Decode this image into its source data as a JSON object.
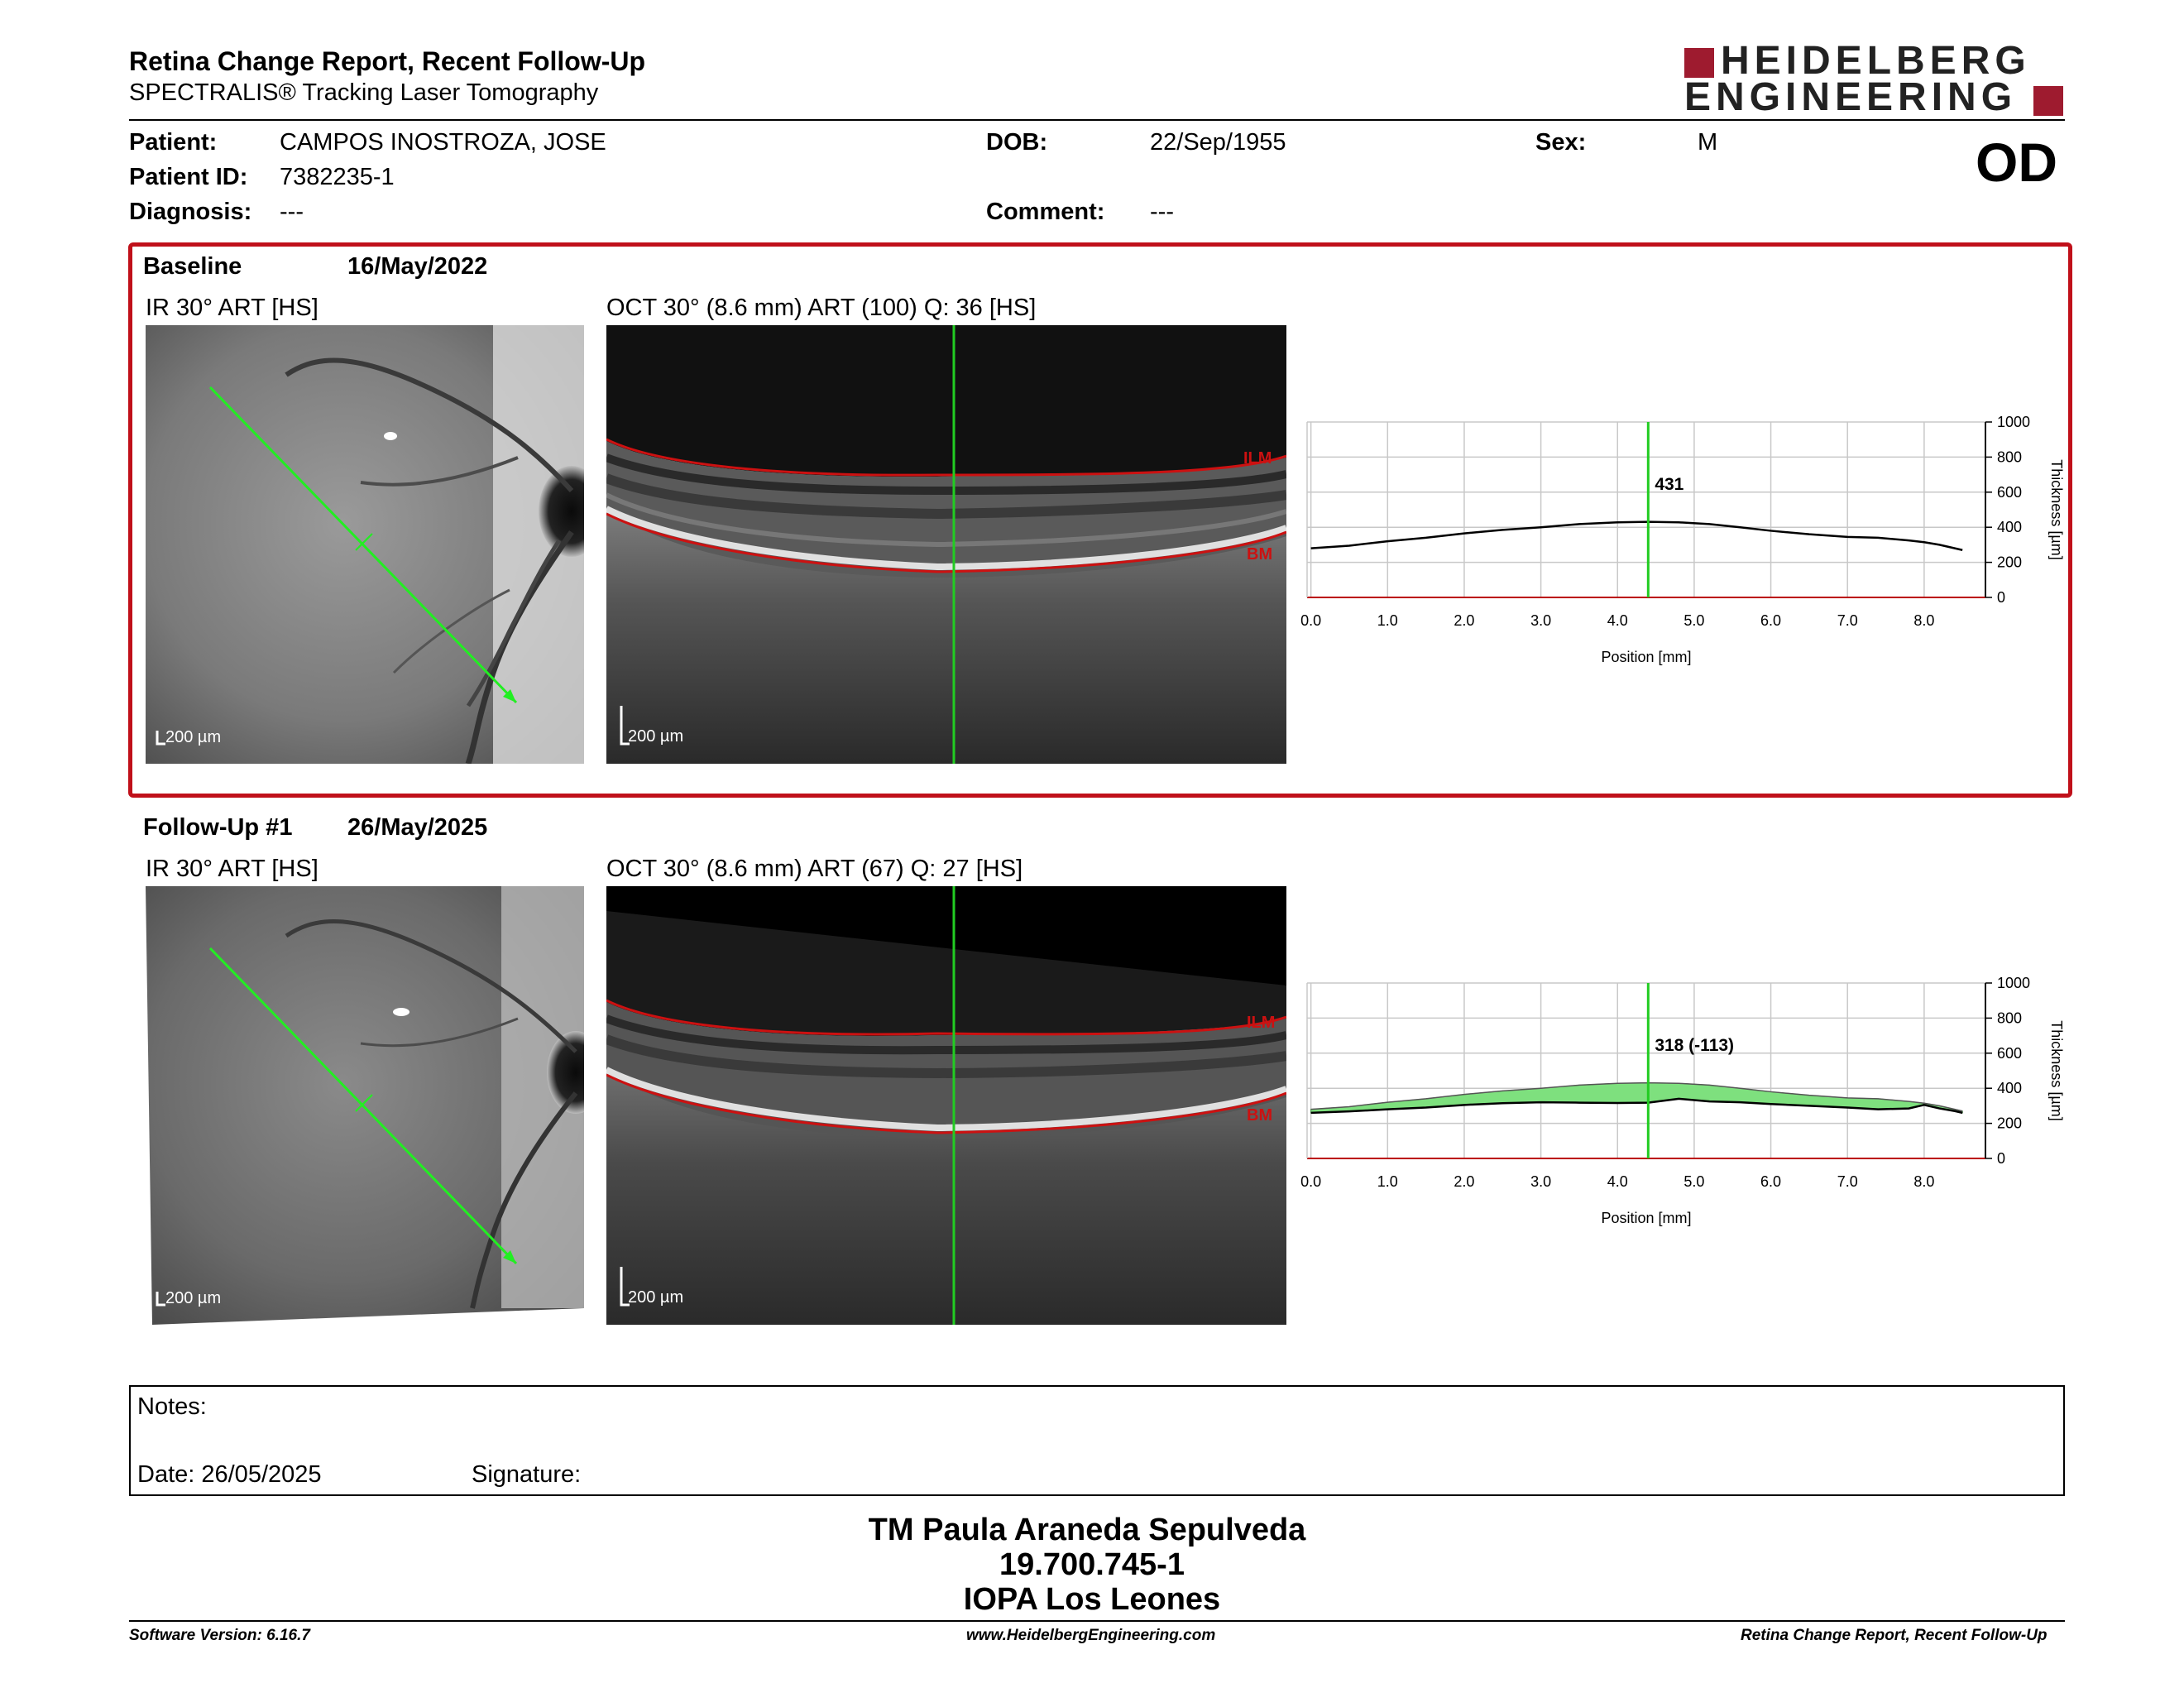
{
  "header": {
    "title": "Retina Change Report, Recent Follow-Up",
    "subtitle": "SPECTRALIS® Tracking Laser Tomography",
    "logo_line1": "HEIDELBERG",
    "logo_line2": "ENGINEERING",
    "brand_color": "#9e1b2f"
  },
  "patient": {
    "patient_label": "Patient:",
    "patient_value": "CAMPOS INOSTROZA, JOSE",
    "id_label": "Patient ID:",
    "id_value": "7382235-1",
    "diagnosis_label": "Diagnosis:",
    "diagnosis_value": "---",
    "dob_label": "DOB:",
    "dob_value": "22/Sep/1955",
    "comment_label": "Comment:",
    "comment_value": "---",
    "sex_label": "Sex:",
    "sex_value": "M",
    "eye": "OD"
  },
  "baseline": {
    "name": "Baseline",
    "date": "16/May/2022",
    "ir_label": "IR 30° ART [HS]",
    "oct_label": "OCT 30° (8.6 mm) ART (100) Q: 36 [HS]",
    "ir_scale": "200 µm",
    "oct_scale": "200 µm",
    "ilm": "ILM",
    "bm": "BM",
    "highlight_color": "#c0101a"
  },
  "followup": {
    "name": "Follow-Up #1",
    "date": "26/May/2025",
    "ir_label": "IR 30° ART [HS]",
    "oct_label": "OCT 30° (8.6 mm) ART (67) Q: 27 [HS]",
    "ir_scale": "200 µm",
    "oct_scale": "200 µm",
    "ilm": "ILM",
    "bm": "BM"
  },
  "chart_data": [
    {
      "type": "line",
      "id": "baseline-thickness",
      "xlabel": "Position [mm]",
      "ylabel": "Thickness [µm]",
      "xlim": [
        -0.05,
        8.8
      ],
      "ylim": [
        0,
        1000
      ],
      "x_ticks": [
        "0.0",
        "1.0",
        "2.0",
        "3.0",
        "4.0",
        "5.0",
        "6.0",
        "7.0",
        "8.0"
      ],
      "y_ticks": [
        "0",
        "200",
        "400",
        "600",
        "800",
        "1000"
      ],
      "grid": true,
      "cursor_x": 4.4,
      "cursor_label": "431",
      "cursor_color": "#22cc22",
      "series": [
        {
          "x": [
            0.0,
            0.5,
            1.0,
            1.5,
            2.0,
            2.5,
            3.0,
            3.5,
            4.0,
            4.4,
            4.8,
            5.2,
            5.6,
            6.0,
            6.5,
            7.0,
            7.4,
            7.8,
            8.0,
            8.2,
            8.4,
            8.5
          ],
          "values": [
            280,
            295,
            320,
            340,
            365,
            385,
            400,
            418,
            428,
            431,
            428,
            418,
            400,
            380,
            360,
            345,
            340,
            325,
            315,
            300,
            280,
            270
          ]
        }
      ]
    },
    {
      "type": "area",
      "id": "followup-thickness",
      "xlabel": "Position [mm]",
      "ylabel": "Thickness [µm]",
      "xlim": [
        -0.05,
        8.8
      ],
      "ylim": [
        0,
        1000
      ],
      "x_ticks": [
        "0.0",
        "1.0",
        "2.0",
        "3.0",
        "4.0",
        "5.0",
        "6.0",
        "7.0",
        "8.0"
      ],
      "y_ticks": [
        "0",
        "200",
        "400",
        "600",
        "800",
        "1000"
      ],
      "grid": true,
      "cursor_x": 4.4,
      "cursor_label": "318 (-113)",
      "cursor_color": "#22cc22",
      "fill_color": "#7ee07e",
      "series": [
        {
          "x": [
            0.0,
            0.5,
            1.0,
            1.5,
            2.0,
            2.5,
            3.0,
            3.5,
            4.0,
            4.4,
            4.8,
            5.2,
            5.6,
            6.0,
            6.5,
            7.0,
            7.4,
            7.8,
            8.0,
            8.2,
            8.4,
            8.5
          ],
          "values": [
            260,
            268,
            280,
            290,
            305,
            315,
            320,
            318,
            316,
            318,
            340,
            325,
            320,
            310,
            300,
            290,
            280,
            285,
            305,
            285,
            270,
            260
          ]
        },
        {
          "x": [
            0.0,
            0.5,
            1.0,
            1.5,
            2.0,
            2.5,
            3.0,
            3.5,
            4.0,
            4.4,
            4.8,
            5.2,
            5.6,
            6.0,
            6.5,
            7.0,
            7.4,
            7.8,
            8.0,
            8.2,
            8.4,
            8.5
          ],
          "values": [
            280,
            295,
            320,
            340,
            365,
            385,
            400,
            418,
            428,
            431,
            428,
            418,
            400,
            380,
            360,
            345,
            340,
            325,
            315,
            300,
            280,
            270
          ]
        }
      ]
    }
  ],
  "notes": {
    "notes_label": "Notes:",
    "date_label": "Date: 26/05/2025",
    "signature_label": "Signature:"
  },
  "signature": {
    "name": "TM Paula Araneda Sepulveda",
    "rut": "19.700.745-1",
    "institution": "IOPA Los Leones"
  },
  "footer": {
    "software": "Software Version: 6.16.7",
    "website": "www.HeidelbergEngineering.com",
    "report": "Retina Change Report, Recent Follow-Up"
  }
}
